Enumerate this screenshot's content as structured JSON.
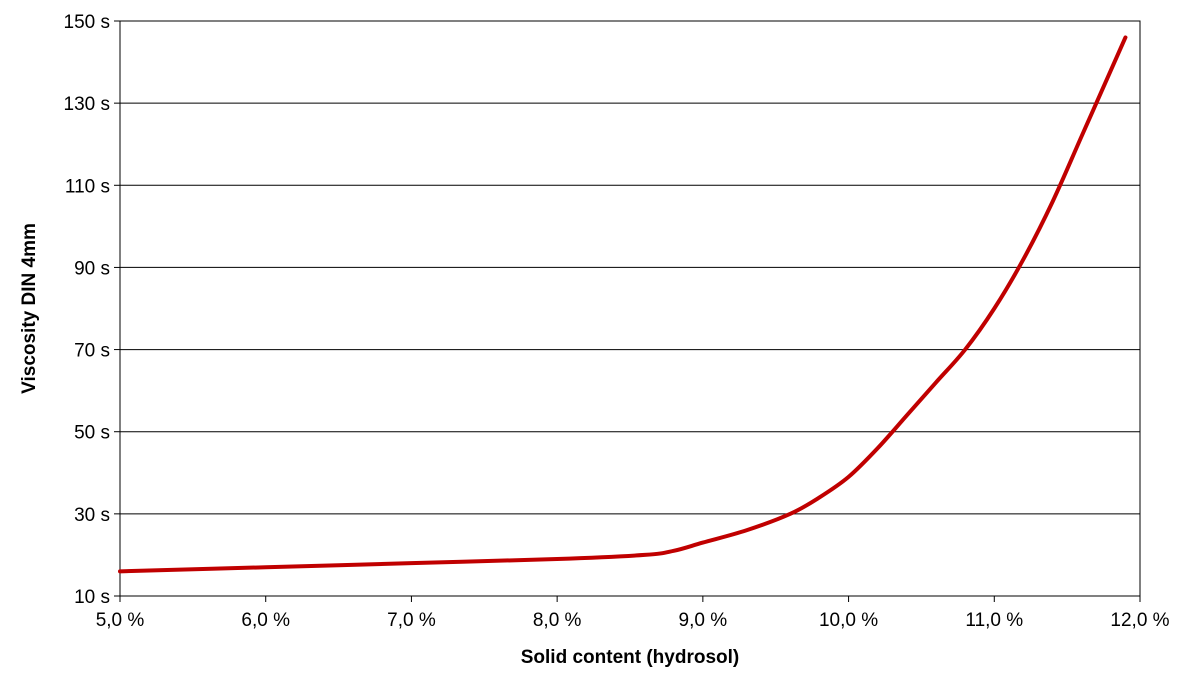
{
  "chart_data": {
    "type": "line",
    "title": "",
    "xlabel": "Solid content (hydrosol)",
    "ylabel": "Viscosity DIN 4mm",
    "xlim": [
      5.0,
      12.0
    ],
    "ylim": [
      10,
      150
    ],
    "x_ticks": [
      5.0,
      6.0,
      7.0,
      8.0,
      9.0,
      10.0,
      11.0,
      12.0
    ],
    "x_tick_labels": [
      "5,0 %",
      "6,0 %",
      "7,0 %",
      "8,0 %",
      "9,0 %",
      "10,0 %",
      "11,0 %",
      "12,0 %"
    ],
    "y_ticks": [
      10,
      30,
      50,
      70,
      90,
      110,
      130,
      150
    ],
    "y_tick_labels": [
      "10 s",
      "30 s",
      "50 s",
      "70 s",
      "90 s",
      "110 s",
      "130 s",
      "150 s"
    ],
    "grid": "horizontal",
    "legend": "none",
    "series": [
      {
        "color": "#c00000",
        "x": [
          5.0,
          6.0,
          7.0,
          8.0,
          8.6,
          8.8,
          9.0,
          9.3,
          9.6,
          9.8,
          10.0,
          10.2,
          10.4,
          10.6,
          10.8,
          11.0,
          11.2,
          11.4,
          11.6,
          11.8,
          11.9
        ],
        "y": [
          16,
          17,
          18,
          19,
          20,
          21,
          23,
          26,
          30,
          34,
          39,
          46,
          54,
          62,
          70,
          80,
          92,
          106,
          122,
          138,
          146
        ]
      }
    ]
  }
}
